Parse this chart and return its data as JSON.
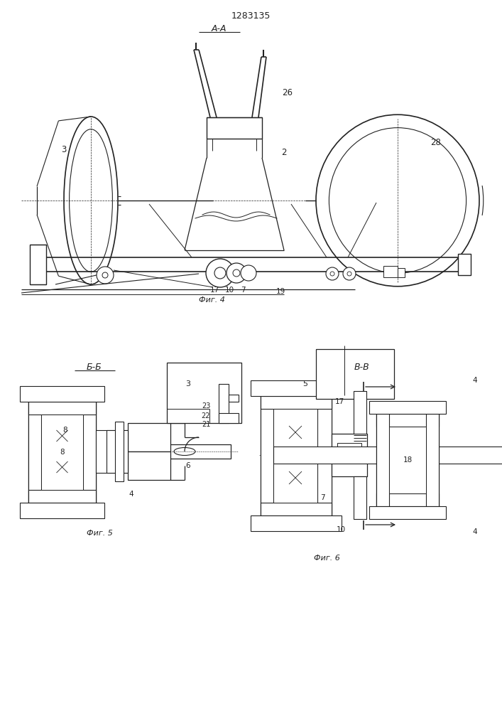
{
  "title": "1283135",
  "bg_color": "#ffffff",
  "line_color": "#222222",
  "fig_width": 7.07,
  "fig_height": 10.0,
  "section_AA_label": "А-А",
  "section_BB_label": "Б-Б",
  "section_VV_label": "В-В",
  "fig4_label": "Фиг. 4",
  "fig5_label": "Фиг. 5",
  "fig6_label": "Фиг. 6"
}
